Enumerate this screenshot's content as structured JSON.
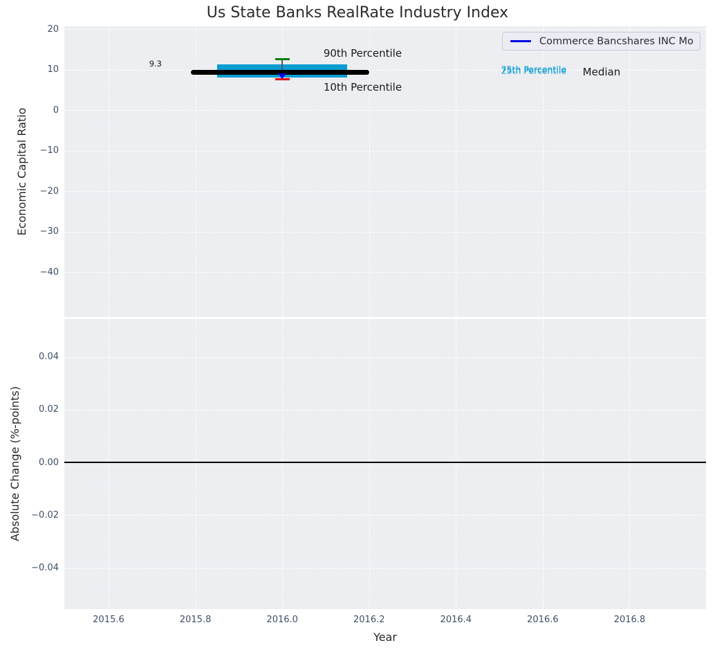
{
  "figure": {
    "title": "Us State Banks RealRate Industry Index",
    "background_color": "#ffffff",
    "axes_background_color": "#eceef2",
    "grid_color": "#ffffff",
    "tick_label_color": "#3e4e66",
    "text_color": "#262626"
  },
  "legend": {
    "label": "Commerce Bancshares INC Mo",
    "line_color": "#0000e0"
  },
  "chart_data": [
    {
      "type": "boxplot",
      "title": "Us State Banks RealRate Industry Index",
      "xlabel": "Year",
      "ylabel": "Economic Capital Ratio",
      "xlim": [
        2015.498,
        2016.976
      ],
      "ylim": [
        -51.1,
        20.7
      ],
      "xticks": [
        2015.6,
        2015.8,
        2016.0,
        2016.2,
        2016.4,
        2016.6,
        2016.8
      ],
      "xtick_labels": [
        "2015.6",
        "2015.8",
        "2016.0",
        "2016.2",
        "2016.4",
        "2016.6",
        "2016.8"
      ],
      "yticks": [
        20,
        10,
        0,
        -10,
        -20,
        -30,
        -40
      ],
      "ytick_labels": [
        "20",
        "10",
        "0",
        "−10",
        "−20",
        "−30",
        "−40"
      ],
      "grid": true,
      "legend_position": "upper right",
      "box": {
        "x_center": 2016.0,
        "box_x_range": [
          2015.85,
          2016.15
        ],
        "median_x_range": [
          2015.79,
          2016.2
        ],
        "cap_half_width": 0.017,
        "p10": 7.6,
        "p25": 8.1,
        "median": 9.3,
        "p75": 11.3,
        "p90": 12.5,
        "median_value_label": "9.3",
        "box_color": "#0a9dd2",
        "median_color": "#000000",
        "whisker_color": "#555555",
        "p90_cap_color": "#008000",
        "p10_cap_color": "#e60000"
      },
      "company_point": {
        "name": "Commerce Bancshares INC Mo",
        "x": 2016.0,
        "y": 8.4,
        "marker": "triangle-down",
        "color": "#0000e0"
      },
      "annotations": [
        {
          "text": "90th Percentile",
          "x": 2016.095,
          "y": 14.0,
          "color": "#1a1a1a",
          "size": 15,
          "align": "left"
        },
        {
          "text": "10th Percentile",
          "x": 2016.095,
          "y": 5.7,
          "color": "#1a1a1a",
          "size": 15,
          "align": "left"
        },
        {
          "text": "9.3",
          "x": 2015.708,
          "y": 11.5,
          "color": "#1a1a1a",
          "size": 11.5,
          "align": "center"
        },
        {
          "text": "75th Percentile",
          "x": 2016.504,
          "y": 10.1,
          "color": "#0a9dd2",
          "size": 12.5,
          "align": "left"
        },
        {
          "text": "25th Percentile",
          "x": 2016.504,
          "y": 9.7,
          "color": "#0a9dd2",
          "size": 12.5,
          "align": "left"
        },
        {
          "text": "Median",
          "x": 2016.692,
          "y": 9.4,
          "color": "#1a1a1a",
          "size": 15,
          "align": "left"
        }
      ]
    },
    {
      "type": "line",
      "xlabel": "Year",
      "ylabel": "Absolute Change (%-points)",
      "xlim": [
        2015.498,
        2016.976
      ],
      "ylim": [
        -0.0556,
        0.0543
      ],
      "xticks": [
        2015.6,
        2015.8,
        2016.0,
        2016.2,
        2016.4,
        2016.6,
        2016.8
      ],
      "xtick_labels": [
        "2015.6",
        "2015.8",
        "2016.0",
        "2016.2",
        "2016.4",
        "2016.6",
        "2016.8"
      ],
      "yticks": [
        0.04,
        0.02,
        0.0,
        -0.02,
        -0.04
      ],
      "ytick_labels": [
        "0.04",
        "0.02",
        "0.00",
        "−0.02",
        "−0.04"
      ],
      "grid": true,
      "zero_line": {
        "y": 0.0,
        "color": "#000000"
      },
      "series": []
    }
  ]
}
